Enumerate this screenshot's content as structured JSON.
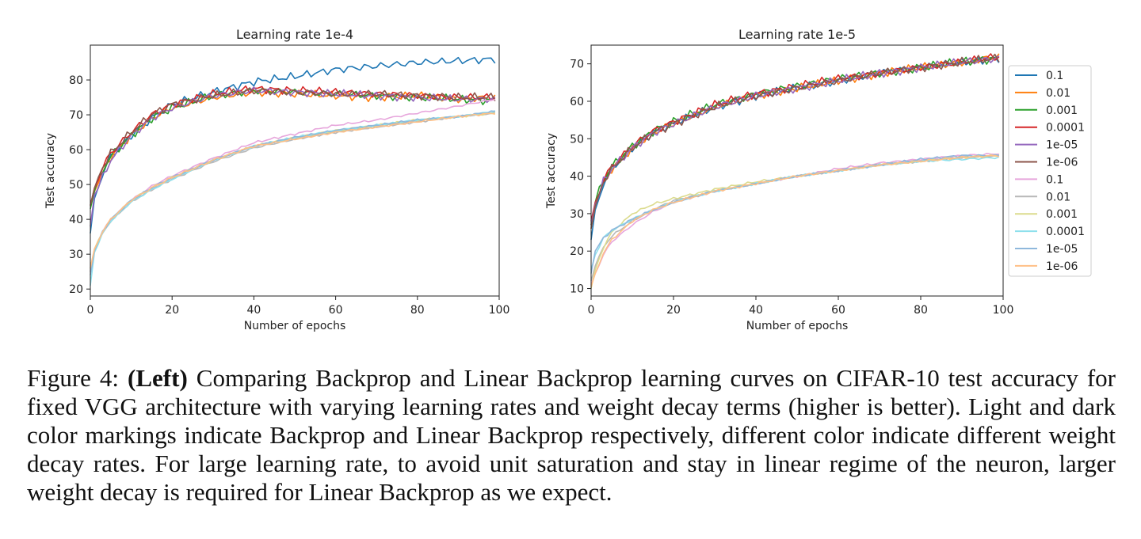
{
  "chart_data": [
    {
      "type": "line",
      "title": "Learning rate 1e-4",
      "xlabel": "Number of epochs",
      "ylabel": "Test accuracy",
      "xlim": [
        0,
        100
      ],
      "ylim": [
        18,
        90
      ],
      "xticks": [
        0,
        20,
        40,
        60,
        80,
        100
      ],
      "yticks": [
        20,
        30,
        40,
        50,
        60,
        70,
        80
      ],
      "grid": false,
      "legend": "none",
      "series": [
        {
          "name": "0.1",
          "color": "#1f77b4",
          "x": [
            0,
            1,
            3,
            5,
            10,
            15,
            20,
            30,
            40,
            50,
            60,
            70,
            80,
            90,
            99
          ],
          "y": [
            36,
            46,
            53,
            58,
            64,
            69,
            73,
            76.5,
            79.5,
            81,
            83,
            84,
            85,
            85.5,
            86
          ]
        },
        {
          "name": "0.01",
          "color": "#ff7f0e",
          "x": [
            0,
            1,
            3,
            5,
            10,
            15,
            20,
            30,
            40,
            50,
            60,
            70,
            80,
            90,
            99
          ],
          "y": [
            44,
            48,
            53,
            58,
            64,
            69,
            72,
            75,
            76.5,
            76,
            75.5,
            75,
            75.5,
            74.5,
            75
          ]
        },
        {
          "name": "0.001",
          "color": "#2ca02c",
          "x": [
            0,
            1,
            3,
            5,
            10,
            15,
            20,
            30,
            40,
            50,
            60,
            70,
            80,
            90,
            99
          ],
          "y": [
            43,
            48,
            54,
            58,
            64,
            69,
            72,
            75.5,
            77,
            76.5,
            76,
            75.5,
            75,
            74.5,
            74
          ]
        },
        {
          "name": "0.0001",
          "color": "#d62728",
          "x": [
            0,
            1,
            3,
            5,
            10,
            15,
            20,
            30,
            40,
            50,
            60,
            70,
            80,
            90,
            99
          ],
          "y": [
            44,
            49,
            55,
            59,
            65,
            70,
            73,
            76,
            77.5,
            77,
            76.5,
            76,
            75.5,
            75,
            75
          ]
        },
        {
          "name": "1e-05",
          "color": "#9467bd",
          "x": [
            0,
            1,
            3,
            5,
            10,
            15,
            20,
            30,
            40,
            50,
            60,
            70,
            80,
            90,
            99
          ],
          "y": [
            38,
            47,
            52,
            57,
            64,
            69,
            72,
            75.5,
            77,
            76.5,
            76,
            75.5,
            75,
            74.5,
            74.5
          ]
        },
        {
          "name": "1e-06",
          "color": "#8c564b",
          "x": [
            0,
            1,
            3,
            5,
            10,
            15,
            20,
            30,
            40,
            50,
            60,
            70,
            80,
            90,
            99
          ],
          "y": [
            44,
            49,
            55,
            59,
            65,
            70,
            73,
            75.5,
            77,
            76.5,
            76,
            76,
            75.5,
            75,
            75
          ]
        },
        {
          "name": "0.1",
          "color": "#e7a6dc",
          "x": [
            0,
            1,
            3,
            5,
            10,
            15,
            20,
            30,
            40,
            50,
            60,
            70,
            80,
            90,
            99
          ],
          "y": [
            25,
            31,
            36.5,
            40,
            45.5,
            49.5,
            52.5,
            57.5,
            62,
            64.5,
            67,
            68.5,
            70.5,
            72.5,
            74.5
          ]
        },
        {
          "name": "0.01",
          "color": "#b8b8b8",
          "x": [
            0,
            1,
            3,
            5,
            10,
            15,
            20,
            30,
            40,
            50,
            60,
            70,
            80,
            90,
            99
          ],
          "y": [
            25,
            31,
            36,
            39.5,
            45,
            48.5,
            51.5,
            56.5,
            60.5,
            63,
            65,
            66.5,
            68,
            69.5,
            70.5
          ]
        },
        {
          "name": "0.001",
          "color": "#dbdb8d",
          "x": [
            0,
            1,
            3,
            5,
            10,
            15,
            20,
            30,
            40,
            50,
            60,
            70,
            80,
            90,
            99
          ],
          "y": [
            26,
            31.5,
            36.5,
            40,
            45.5,
            49,
            52,
            57,
            61,
            63.5,
            65.5,
            67,
            68.5,
            69.5,
            70.5
          ]
        },
        {
          "name": "0.0001",
          "color": "#8ee0ec",
          "x": [
            0,
            1,
            3,
            5,
            10,
            15,
            20,
            30,
            40,
            50,
            60,
            70,
            80,
            90,
            99
          ],
          "y": [
            21,
            30.5,
            36,
            39.5,
            45,
            48.5,
            51.5,
            57,
            61,
            63.5,
            65.5,
            67,
            68.5,
            69.5,
            71
          ]
        },
        {
          "name": "1e-05",
          "color": "#8fb8dc",
          "x": [
            0,
            1,
            3,
            5,
            10,
            15,
            20,
            30,
            40,
            50,
            60,
            70,
            80,
            90,
            99
          ],
          "y": [
            24,
            31,
            36.5,
            40,
            45.5,
            49,
            52,
            57,
            61,
            63.5,
            65.5,
            67,
            68.5,
            69.5,
            71
          ]
        },
        {
          "name": "1e-06",
          "color": "#ffbf86",
          "x": [
            0,
            1,
            3,
            5,
            10,
            15,
            20,
            30,
            40,
            50,
            60,
            70,
            80,
            90,
            99
          ],
          "y": [
            26,
            31.5,
            36.5,
            40,
            45.5,
            49,
            52,
            57,
            61,
            63,
            65,
            66.5,
            68,
            69.5,
            70.5
          ]
        }
      ]
    },
    {
      "type": "line",
      "title": "Learning rate 1e-5",
      "xlabel": "Number of epochs",
      "ylabel": "Test accuracy",
      "xlim": [
        0,
        100
      ],
      "ylim": [
        8,
        75
      ],
      "xticks": [
        0,
        20,
        40,
        60,
        80,
        100
      ],
      "yticks": [
        10,
        20,
        30,
        40,
        50,
        60,
        70
      ],
      "grid": false,
      "legend": "right",
      "series": [
        {
          "name": "0.1",
          "color": "#1f77b4",
          "x": [
            0,
            1,
            3,
            5,
            10,
            15,
            20,
            30,
            40,
            50,
            60,
            70,
            80,
            90,
            99
          ],
          "y": [
            23,
            31,
            38,
            42,
            47.5,
            51.5,
            54,
            58.5,
            61.5,
            63.5,
            65.5,
            67.5,
            69,
            70.5,
            71.5
          ]
        },
        {
          "name": "0.01",
          "color": "#ff7f0e",
          "x": [
            0,
            1,
            3,
            5,
            10,
            15,
            20,
            30,
            40,
            50,
            60,
            70,
            80,
            90,
            99
          ],
          "y": [
            26,
            32,
            38.5,
            42,
            47.5,
            51.5,
            54,
            58.5,
            61.5,
            63.5,
            65.5,
            67.5,
            69,
            70.5,
            72
          ]
        },
        {
          "name": "0.001",
          "color": "#2ca02c",
          "x": [
            0,
            1,
            3,
            5,
            10,
            15,
            20,
            30,
            40,
            50,
            60,
            70,
            80,
            90,
            99
          ],
          "y": [
            27,
            33,
            39,
            42.5,
            48,
            52,
            54.5,
            59,
            62,
            64,
            66,
            67.5,
            69,
            70.5,
            71.5
          ]
        },
        {
          "name": "0.0001",
          "color": "#d62728",
          "x": [
            0,
            1,
            3,
            5,
            10,
            15,
            20,
            30,
            40,
            50,
            60,
            70,
            80,
            90,
            99
          ],
          "y": [
            28,
            33,
            39,
            42.5,
            48,
            52,
            54.5,
            59,
            62,
            64,
            66,
            67.5,
            69,
            70.5,
            72
          ]
        },
        {
          "name": "1e-05",
          "color": "#9467bd",
          "x": [
            0,
            1,
            3,
            5,
            10,
            15,
            20,
            30,
            40,
            50,
            60,
            70,
            80,
            90,
            99
          ],
          "y": [
            27,
            32.5,
            38.5,
            42,
            47.5,
            51.5,
            54,
            58.5,
            61.5,
            63.5,
            65.5,
            67.5,
            69,
            70.5,
            71.5
          ]
        },
        {
          "name": "1e-06",
          "color": "#8c564b",
          "x": [
            0,
            1,
            3,
            5,
            10,
            15,
            20,
            30,
            40,
            50,
            60,
            70,
            80,
            90,
            99
          ],
          "y": [
            26,
            32,
            38.5,
            42,
            47.5,
            51.5,
            54,
            58.5,
            61.5,
            63.5,
            65.5,
            67.5,
            69,
            70.5,
            71.5
          ]
        },
        {
          "name": "0.1",
          "color": "#e7a6dc",
          "x": [
            0,
            1,
            3,
            5,
            10,
            15,
            20,
            30,
            40,
            50,
            60,
            70,
            80,
            90,
            99
          ],
          "y": [
            11,
            14,
            19,
            22.5,
            27,
            30.5,
            33,
            36,
            38,
            40,
            42,
            43.5,
            44.5,
            45.5,
            46
          ]
        },
        {
          "name": "0.01",
          "color": "#b8b8b8",
          "x": [
            0,
            1,
            3,
            5,
            10,
            15,
            20,
            30,
            40,
            50,
            60,
            70,
            80,
            90,
            99
          ],
          "y": [
            12,
            16,
            21,
            24,
            28,
            31,
            33.5,
            36,
            38,
            40,
            41.5,
            43,
            44,
            45,
            45.5
          ]
        },
        {
          "name": "0.001",
          "color": "#dbdb8d",
          "x": [
            0,
            1,
            3,
            5,
            10,
            15,
            20,
            30,
            40,
            50,
            60,
            70,
            80,
            90,
            99
          ],
          "y": [
            10,
            15,
            21,
            25,
            30,
            32.5,
            34,
            36.5,
            38.5,
            40,
            41.5,
            43,
            44,
            45,
            45.5
          ]
        },
        {
          "name": "0.0001",
          "color": "#8ee0ec",
          "x": [
            0,
            1,
            3,
            5,
            10,
            15,
            20,
            30,
            40,
            50,
            60,
            70,
            80,
            90,
            99
          ],
          "y": [
            15,
            19,
            23.5,
            25.5,
            28.5,
            31,
            33,
            36,
            38,
            40,
            41.5,
            43,
            44,
            44.5,
            45
          ]
        },
        {
          "name": "1e-05",
          "color": "#8fb8dc",
          "x": [
            0,
            1,
            3,
            5,
            10,
            15,
            20,
            30,
            40,
            50,
            60,
            70,
            80,
            90,
            99
          ],
          "y": [
            14,
            20,
            23.5,
            25.5,
            28.5,
            31,
            33,
            36,
            38,
            40,
            41.5,
            43,
            44.5,
            45.5,
            45.5
          ]
        },
        {
          "name": "1e-06",
          "color": "#ffbf86",
          "x": [
            0,
            1,
            3,
            5,
            10,
            15,
            20,
            30,
            40,
            50,
            60,
            70,
            80,
            90,
            99
          ],
          "y": [
            10.5,
            14,
            19.5,
            23,
            28,
            31,
            33,
            36,
            38,
            40,
            41.5,
            43,
            44,
            45,
            45.5
          ]
        }
      ]
    }
  ],
  "caption": {
    "label": "Figure 4: ",
    "bold": "(Left)",
    "text": " Comparing Backprop and Linear Backprop learning curves on CIFAR-10 test accuracy for fixed VGG architecture with varying learning rates and weight decay terms (higher is better). Light and dark color markings indicate Backprop and Linear Backprop respectively, different color indicate different weight decay rates. For large learning rate, to avoid unit saturation and stay in linear regime of the neuron, larger weight decay is required for Linear Backprop as we expect."
  }
}
